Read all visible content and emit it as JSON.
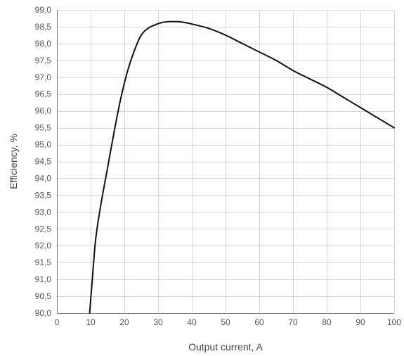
{
  "chart_data": {
    "type": "line",
    "title": "",
    "xlabel": "Output current, A",
    "ylabel": "Efficiency, %",
    "xlim": [
      0,
      100
    ],
    "ylim": [
      90.0,
      99.0
    ],
    "x_ticks": [
      0,
      10,
      20,
      30,
      40,
      50,
      60,
      70,
      80,
      90,
      100
    ],
    "y_ticks": [
      90.0,
      90.5,
      91.0,
      91.5,
      92.0,
      92.5,
      93.0,
      93.5,
      94.0,
      94.5,
      95.0,
      95.5,
      96.0,
      96.5,
      97.0,
      97.5,
      98.0,
      98.5,
      99.0
    ],
    "y_tick_labels": [
      "90,0",
      "90,5",
      "91,0",
      "91,5",
      "92,0",
      "92,5",
      "93,0",
      "93,5",
      "94,0",
      "94,5",
      "95,0",
      "95,5",
      "96,0",
      "96,5",
      "97,0",
      "97,5",
      "98,0",
      "98,5",
      "99,0"
    ],
    "x_tick_labels": [
      "0",
      "10",
      "20",
      "30",
      "40",
      "50",
      "60",
      "70",
      "80",
      "90",
      "100"
    ],
    "grid": true,
    "legend": "none",
    "series": [
      {
        "color": "#111111",
        "x": [
          9.7,
          10.5,
          11.5,
          13,
          15,
          17,
          19,
          21,
          23,
          25,
          27,
          29,
          31,
          33,
          35,
          37,
          40,
          45,
          50,
          55,
          60,
          65,
          70,
          75,
          80,
          85,
          90,
          95,
          100
        ],
        "y": [
          90.0,
          91.0,
          92.2,
          93.2,
          94.3,
          95.4,
          96.4,
          97.2,
          97.8,
          98.25,
          98.45,
          98.55,
          98.62,
          98.65,
          98.65,
          98.64,
          98.58,
          98.45,
          98.25,
          98.0,
          97.75,
          97.5,
          97.2,
          96.95,
          96.7,
          96.4,
          96.1,
          95.8,
          95.5
        ]
      }
    ]
  }
}
